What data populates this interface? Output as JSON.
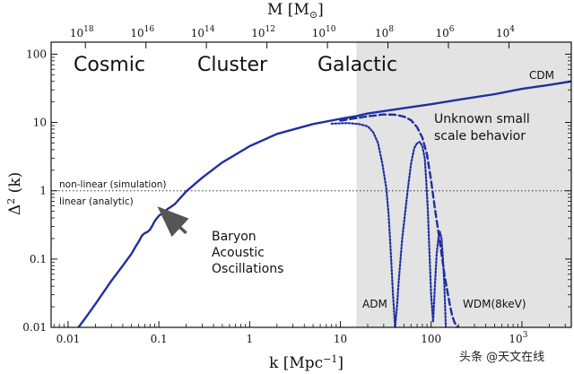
{
  "chart_data": {
    "type": "line",
    "xlabel_prefix": "k  [Mpc",
    "xlabel_sup": "−1",
    "xlabel_suffix": "]",
    "ylabel_base": "Δ",
    "ylabel_sup": "2",
    "ylabel_suffix": " (k)",
    "top_label_prefix": "M  [M",
    "top_label_suffix": "]",
    "x_scale": "log",
    "y_scale": "log",
    "xlim": [
      0.0065,
      3500
    ],
    "ylim": [
      0.01,
      150
    ],
    "x_ticks": [
      {
        "value": 0.01,
        "label": "0.01"
      },
      {
        "value": 0.1,
        "label": "0.1"
      },
      {
        "value": 1,
        "label": "1"
      },
      {
        "value": 10,
        "label": "10"
      },
      {
        "value": 100,
        "label": "100"
      }
    ],
    "x_tick_pow": {
      "value": 1000,
      "base": "10",
      "exp": "3"
    },
    "y_ticks": [
      {
        "value": 0.01,
        "label": "0.01"
      },
      {
        "value": 0.1,
        "label": "0.1"
      },
      {
        "value": 1,
        "label": "1"
      },
      {
        "value": 10,
        "label": "10"
      },
      {
        "value": 100,
        "label": "100"
      }
    ],
    "top_ticks": [
      {
        "k": 0.0155,
        "base": "10",
        "exp": "18"
      },
      {
        "k": 0.072,
        "base": "10",
        "exp": "16"
      },
      {
        "k": 0.334,
        "base": "10",
        "exp": "14"
      },
      {
        "k": 1.55,
        "base": "10",
        "exp": "12"
      },
      {
        "k": 7.2,
        "base": "10",
        "exp": "10"
      },
      {
        "k": 33.4,
        "base": "10",
        "exp": "8"
      },
      {
        "k": 155,
        "base": "10",
        "exp": "6"
      },
      {
        "k": 720,
        "base": "10",
        "exp": "4"
      }
    ],
    "shaded_region": {
      "x_from": 15,
      "x_to": 3500,
      "color": "#e3e3e3"
    },
    "reference_line": {
      "y": 1,
      "style": "dotted"
    },
    "regions": [
      "Cosmic",
      "Cluster",
      "Galactic"
    ],
    "annotations": {
      "nonlinear": "non-linear (simulation)",
      "linear": "linear (analytic)",
      "bao": [
        "Baryon",
        "Acoustic",
        "Oscillations"
      ],
      "unknown": [
        "Unknown small",
        "scale behavior"
      ],
      "arrow_from": {
        "x": 0.2,
        "y": 0.24
      },
      "arrow_to": {
        "x": 0.102,
        "y": 0.55
      }
    },
    "series": [
      {
        "name": "CDM",
        "style": "solid",
        "color": "#1f2fa0",
        "x": [
          0.013,
          0.016,
          0.02,
          0.03,
          0.04,
          0.05,
          0.055,
          0.06,
          0.065,
          0.07,
          0.075,
          0.08,
          0.085,
          0.09,
          0.1,
          0.11,
          0.12,
          0.13,
          0.15,
          0.2,
          0.3,
          0.5,
          1,
          2,
          5,
          10,
          15,
          20,
          50,
          100,
          200,
          500,
          1000,
          2000,
          3500
        ],
        "y": [
          0.01,
          0.0145,
          0.022,
          0.048,
          0.08,
          0.12,
          0.15,
          0.18,
          0.22,
          0.24,
          0.25,
          0.27,
          0.31,
          0.36,
          0.43,
          0.47,
          0.52,
          0.56,
          0.64,
          0.98,
          1.55,
          2.6,
          4.5,
          6.8,
          9.5,
          11.3,
          12.4,
          13.5,
          16.2,
          18.5,
          21.5,
          26,
          31,
          35.5,
          40
        ]
      },
      {
        "name": "WDM(8keV)",
        "style": "dashed",
        "color": "#1f2fa0",
        "x": [
          10,
          20,
          30,
          40,
          50,
          60,
          70,
          80,
          90,
          100,
          110,
          120,
          130,
          140,
          150,
          160,
          170,
          180,
          190,
          200
        ],
        "y": [
          10.6,
          12.3,
          13.1,
          13,
          12.2,
          10.8,
          8.5,
          6,
          3.4,
          1.4,
          0.55,
          0.25,
          0.12,
          0.06,
          0.035,
          0.022,
          0.015,
          0.012,
          0.0105,
          0.01
        ]
      },
      {
        "name": "ADM",
        "style": "dotted",
        "color": "#1f2fa0",
        "x": [
          8,
          12,
          16,
          20,
          23,
          26,
          29,
          32,
          34,
          36,
          38,
          40,
          42,
          44,
          48,
          55,
          60,
          65,
          70,
          75,
          80,
          85,
          88,
          92,
          96,
          100,
          105,
          110,
          115,
          120,
          125,
          130,
          135,
          140,
          145
        ],
        "y": [
          9.6,
          9.8,
          9.5,
          8.8,
          7.2,
          5,
          2.5,
          1.1,
          0.45,
          0.12,
          0.03,
          0.01,
          0.02,
          0.05,
          0.2,
          1,
          2.5,
          4.2,
          5,
          5.2,
          4.5,
          3,
          1.5,
          0.5,
          0.12,
          0.03,
          0.012,
          0.04,
          0.12,
          0.2,
          0.25,
          0.2,
          0.1,
          0.04,
          0.01
        ]
      }
    ],
    "series_labels": {
      "adm": "ADM",
      "wdm": "WDM(8keV)"
    }
  },
  "watermark": "头条 @天文在线"
}
